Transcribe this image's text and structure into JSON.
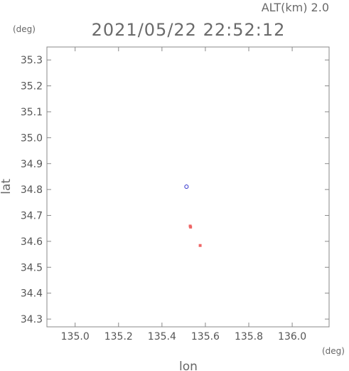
{
  "header": {
    "altitude_label": "ALT(km) 2.0",
    "timestamp": "2021/05/22 22:52:12"
  },
  "chart_data": {
    "type": "scatter",
    "title": "2021/05/22 22:52:12",
    "xlabel": "lon",
    "ylabel": "lat",
    "x_unit": "(deg)",
    "y_unit": "(deg)",
    "xlim": [
      134.87,
      136.17
    ],
    "ylim": [
      34.27,
      35.35
    ],
    "x_ticks": [
      135.0,
      135.2,
      135.4,
      135.6,
      135.8,
      136.0
    ],
    "x_tick_labels": [
      "135.0",
      "135.2",
      "135.4",
      "135.6",
      "135.8",
      "136.0"
    ],
    "y_ticks": [
      34.3,
      34.4,
      34.5,
      34.6,
      34.7,
      34.8,
      34.9,
      35.0,
      35.1,
      35.2,
      35.3
    ],
    "y_tick_labels": [
      "34.3",
      "34.4",
      "34.5",
      "34.6",
      "34.7",
      "34.8",
      "34.9",
      "35.0",
      "35.1",
      "35.2",
      "35.3"
    ],
    "grid": false,
    "series": [
      {
        "color": "#3333cc",
        "marker": "open-circle",
        "points": [
          {
            "x": 135.513,
            "y": 34.811
          }
        ]
      },
      {
        "color": "#ee6666",
        "marker": "filled-square",
        "points": [
          {
            "x": 135.53,
            "y": 34.659
          },
          {
            "x": 135.532,
            "y": 34.655
          },
          {
            "x": 135.576,
            "y": 34.584
          }
        ]
      }
    ]
  }
}
